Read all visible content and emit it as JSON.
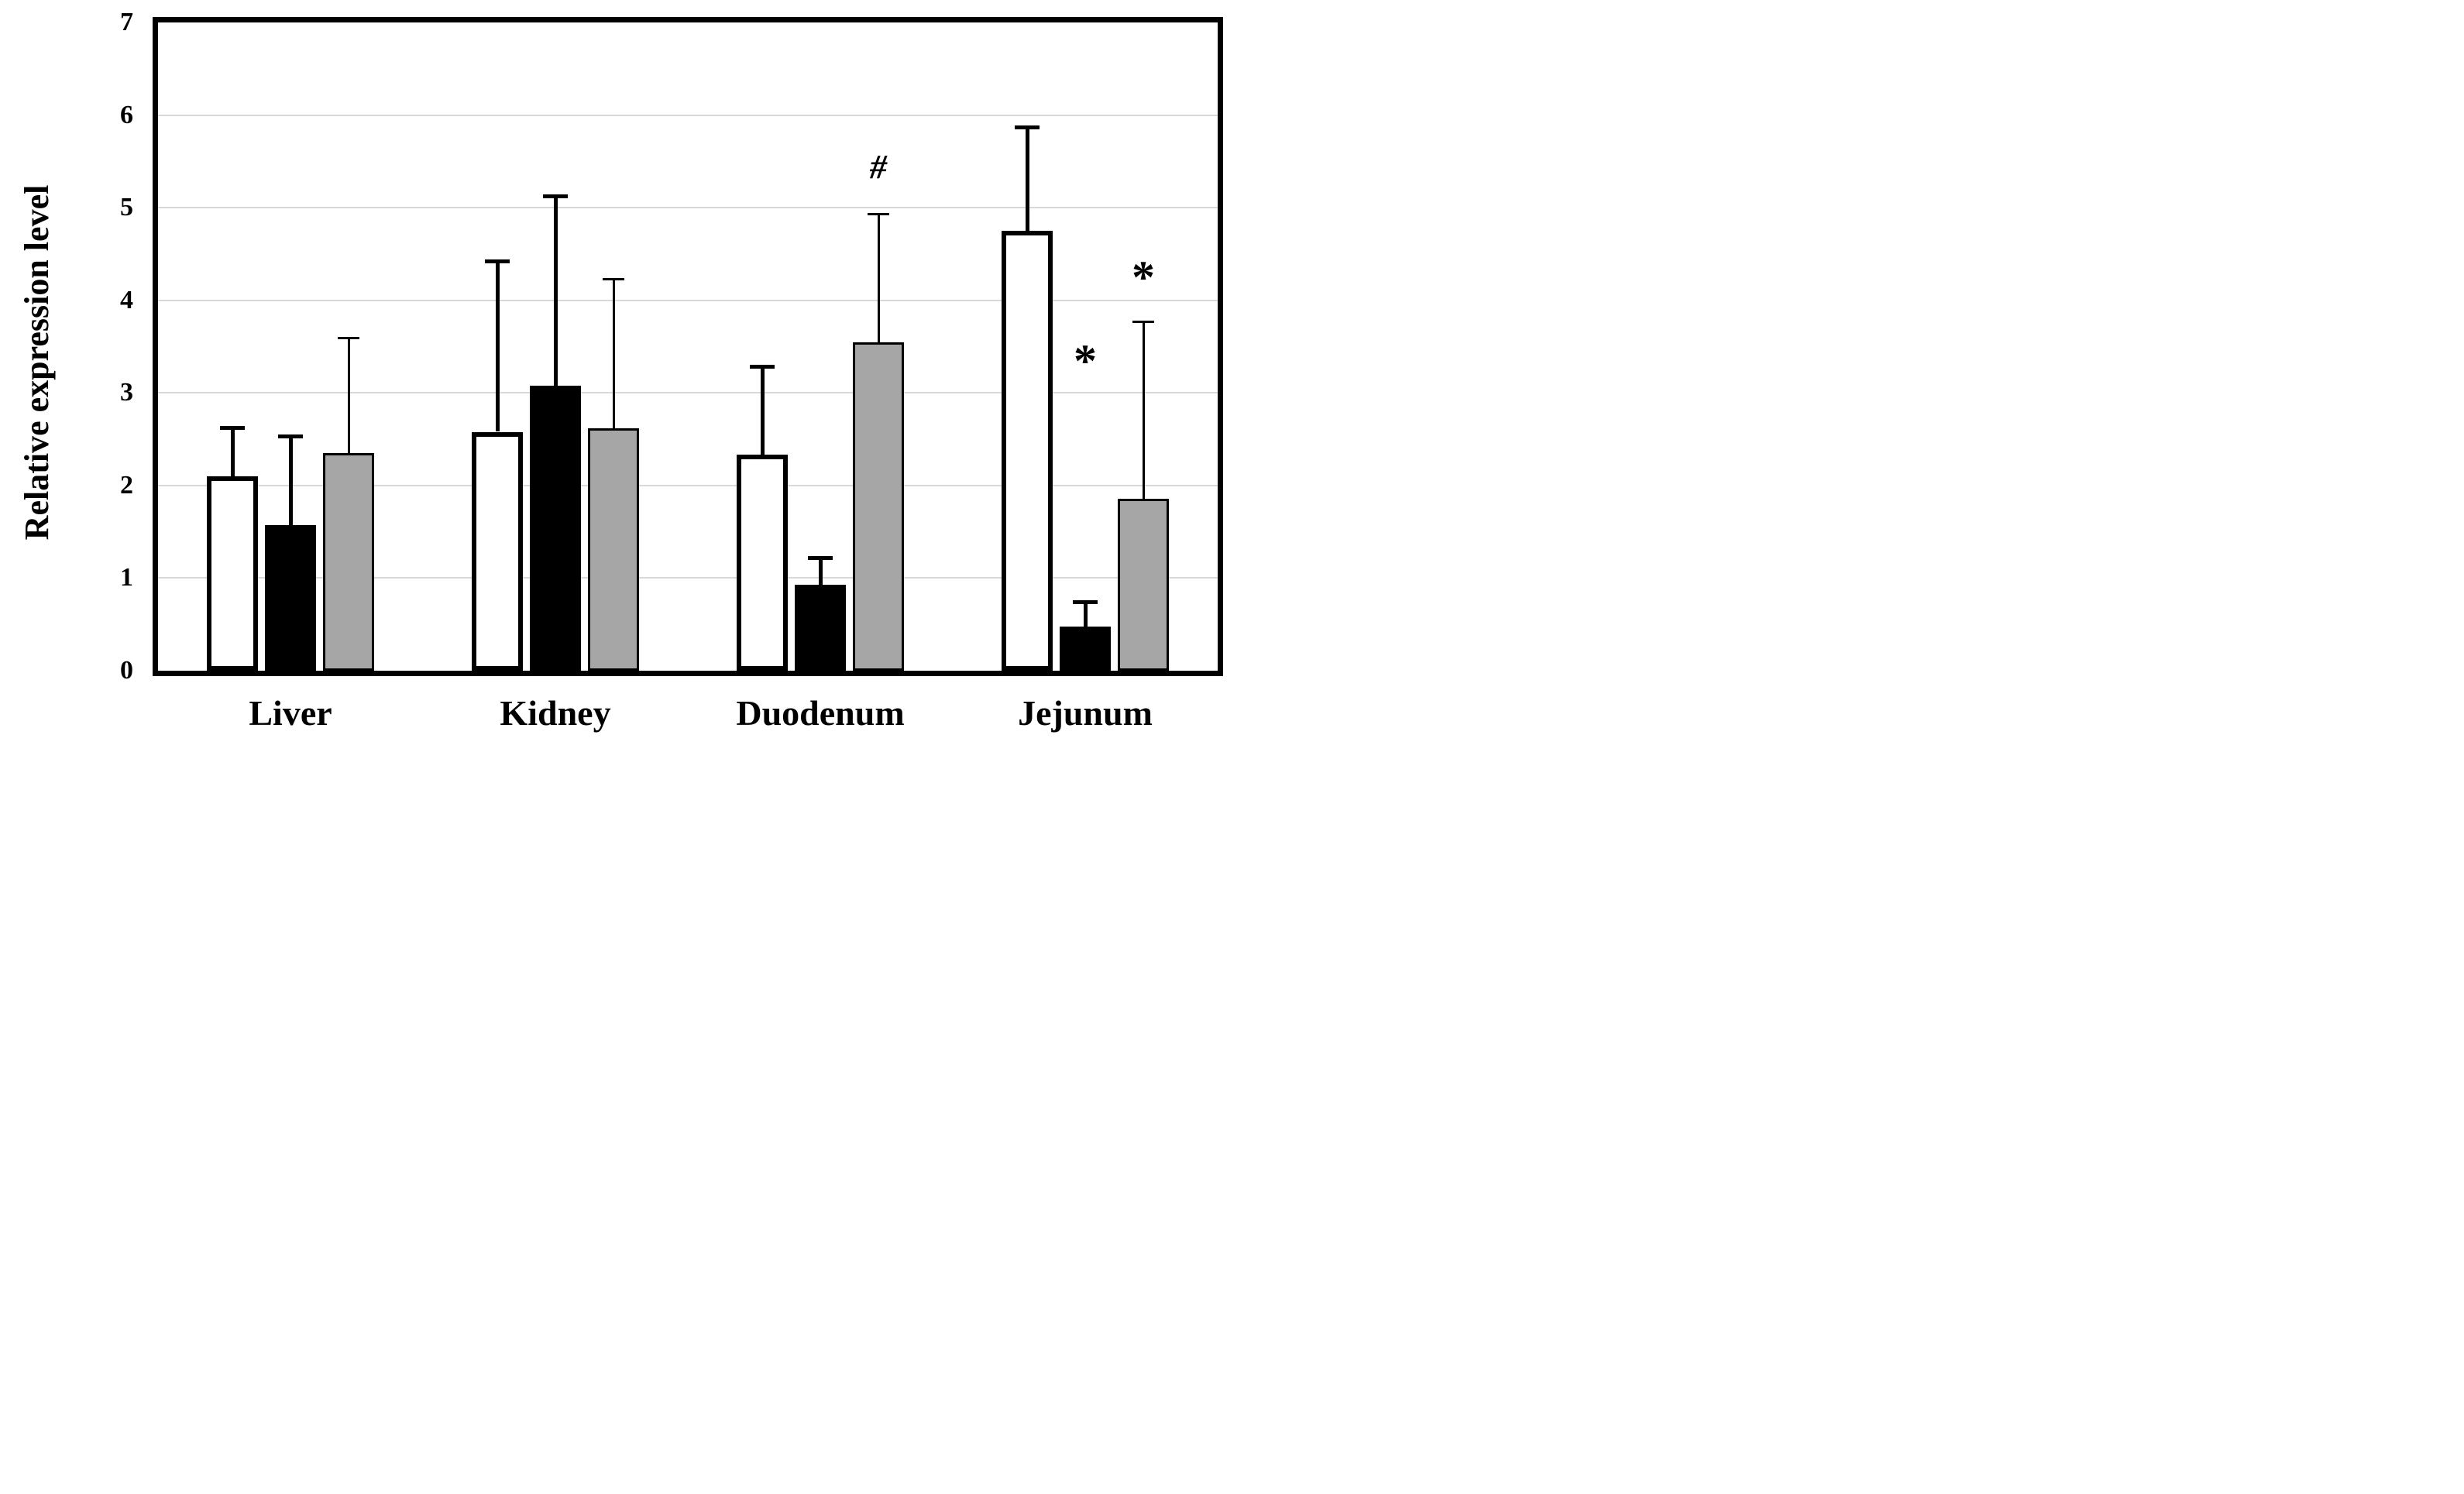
{
  "chart_data": {
    "type": "bar",
    "title": "",
    "ylabel": "Relative expression level",
    "xlabel": "",
    "ylim": [
      0,
      7
    ],
    "yticks": [
      0,
      1,
      2,
      3,
      4,
      5,
      6,
      7
    ],
    "grid": true,
    "legend_position": "none",
    "categories": [
      "Liver",
      "Kidney",
      "Duodenum",
      "Jejunum"
    ],
    "series": [
      {
        "name": "white-bar-series",
        "fill": "#FFFFFF",
        "border": "#000000",
        "values": [
          2.1,
          2.58,
          2.33,
          4.75
        ],
        "errors_plus": [
          0.52,
          1.84,
          0.95,
          1.12
        ]
      },
      {
        "name": "black-bar-series",
        "fill": "#000000",
        "border": "#000000",
        "values": [
          1.57,
          3.08,
          0.93,
          0.48
        ],
        "errors_plus": [
          0.96,
          2.04,
          0.29,
          0.26
        ]
      },
      {
        "name": "gray-bar-series",
        "fill": "#A6A6A6",
        "border": "#000000",
        "values": [
          2.35,
          2.62,
          3.55,
          1.86
        ],
        "errors_plus": [
          1.24,
          1.61,
          1.38,
          1.91
        ]
      }
    ],
    "annotations": [
      {
        "text": "#",
        "category": "Duodenum",
        "series": "gray-bar-series",
        "y": 5.45
      },
      {
        "text": "*",
        "category": "Jejunum",
        "series": "black-bar-series",
        "y": 3.44
      },
      {
        "text": "*",
        "category": "Jejunum",
        "series": "gray-bar-series",
        "y": 4.34
      }
    ],
    "colors": {
      "axis_border": "#000000",
      "gridline": "#D9D9D9",
      "background": "#FFFFFF"
    }
  }
}
